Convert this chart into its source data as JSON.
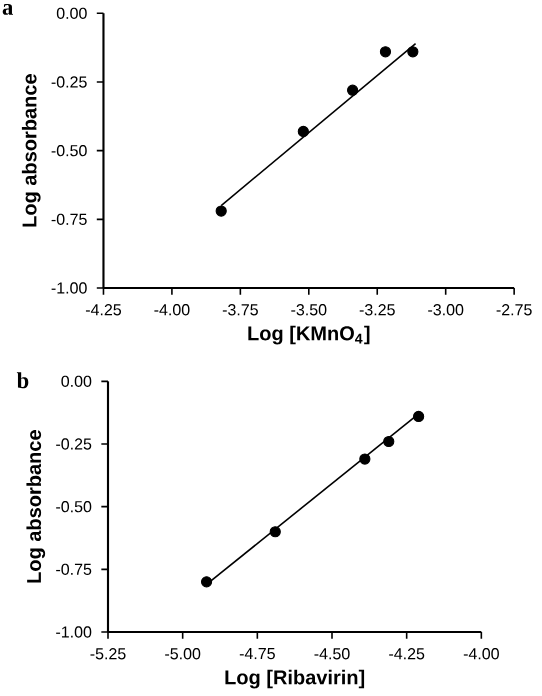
{
  "chart_data": [
    {
      "type": "scatter",
      "title": "a",
      "xlabel": "Log [KMnO$_{4}$]",
      "ylabel": "Log absorbance",
      "grid": false,
      "xlim": [
        -4.25,
        -2.75
      ],
      "ylim": [
        -1.0,
        0.0
      ],
      "xticks": [
        -4.25,
        {
          "value": -4.0,
          "label": "-4.00"
        },
        -3.75,
        {
          "value": -3.5,
          "label": "-3.50"
        },
        -3.25,
        {
          "value": -3.0,
          "label": "-3.00"
        },
        -2.75
      ],
      "yticks": [
        {
          "value": -1.0,
          "label": "-1.00"
        },
        {
          "value": -0.75,
          "label": "-0.75"
        },
        {
          "value": -0.5,
          "label": "-0.50"
        },
        {
          "value": -0.25,
          "label": "-0.25"
        },
        {
          "value": 0.0,
          "label": "0.00"
        }
      ],
      "series": [
        {
          "color": "#000000",
          "marker": "circle",
          "x": [
            -3.82,
            -3.52,
            -3.34,
            -3.22,
            -3.12
          ],
          "values": [
            -0.72,
            -0.43,
            -0.28,
            -0.14,
            -0.14
          ]
        },
        {
          "type": "line",
          "marker": "none",
          "line_style": "solid",
          "color": "#000000",
          "x": [
            -3.82,
            -3.11
          ],
          "values": [
            -0.7,
            -0.11
          ]
        }
      ]
    },
    {
      "type": "scatter",
      "title": "b",
      "xlabel": "Log [Ribavirin]",
      "ylabel": "Log absorbance",
      "grid": false,
      "xlim": [
        -5.25,
        -4.0
      ],
      "ylim": [
        -1.0,
        0.0
      ],
      "xticks": [
        -5.25,
        {
          "value": -5.0,
          "label": "-5.00"
        },
        -4.75,
        {
          "value": -4.5,
          "label": "-4.50"
        },
        -4.25,
        {
          "value": -4.0,
          "label": "-4.00"
        }
      ],
      "yticks": [
        {
          "value": -1.0,
          "label": "-1.00"
        },
        {
          "value": -0.75,
          "label": "-0.75"
        },
        {
          "value": -0.5,
          "label": "-0.50"
        },
        {
          "value": -0.25,
          "label": "-0.25"
        },
        {
          "value": 0.0,
          "label": "0.00"
        }
      ],
      "series": [
        {
          "color": "#000000",
          "marker": "circle",
          "x": [
            -4.92,
            -4.69,
            -4.39,
            -4.31,
            -4.21
          ],
          "values": [
            -0.8,
            -0.6,
            -0.31,
            -0.24,
            -0.14
          ]
        },
        {
          "type": "line",
          "marker": "none",
          "line_style": "solid",
          "color": "#000000",
          "x": [
            -4.92,
            -4.21
          ],
          "values": [
            -0.81,
            -0.13
          ]
        }
      ]
    }
  ]
}
